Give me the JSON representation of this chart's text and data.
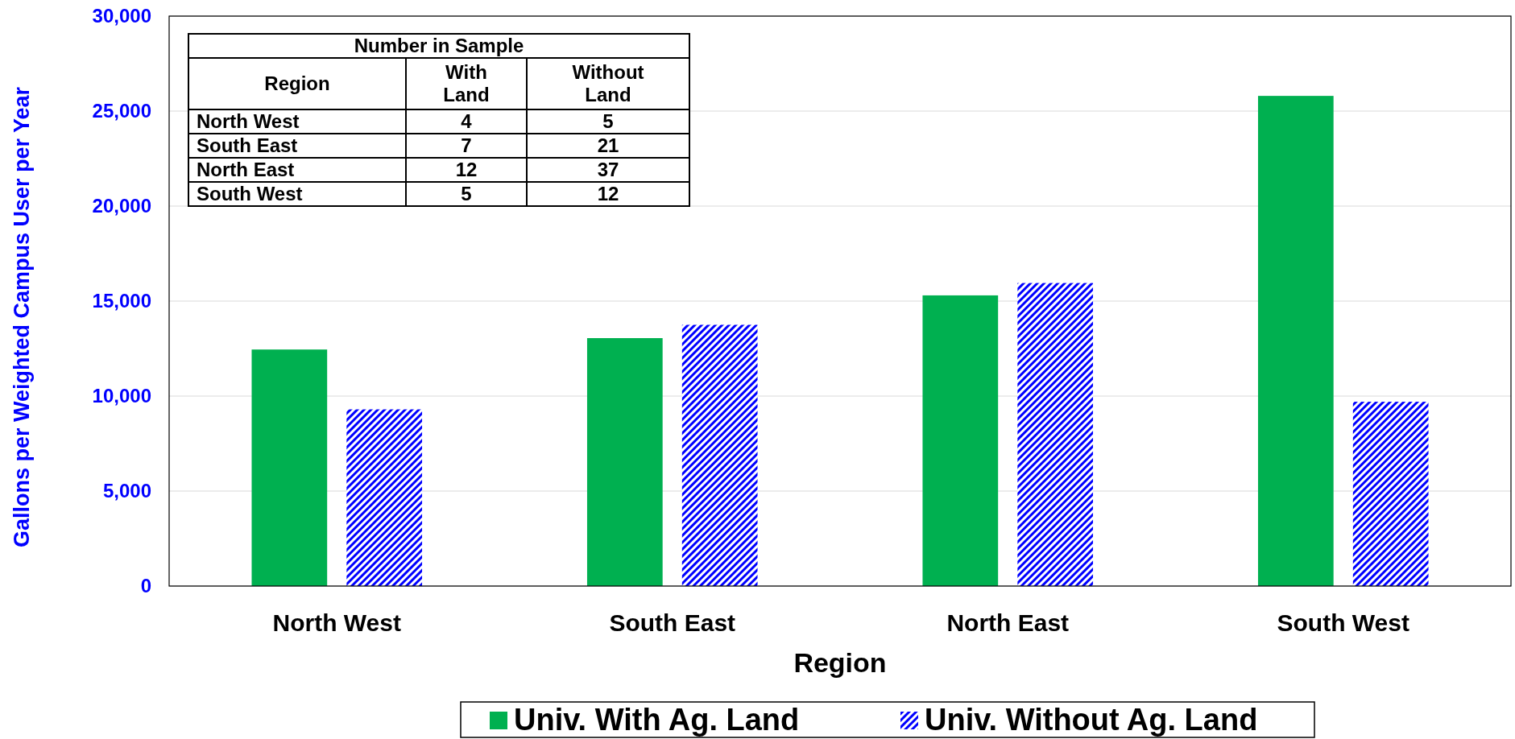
{
  "chart_data": {
    "type": "bar",
    "xlabel": "Region",
    "ylabel": "Gallons per Weighted Campus User per Year",
    "categories": [
      "North West",
      "South East",
      "North East",
      "South West"
    ],
    "series": [
      {
        "name": "Univ. With Ag. Land",
        "color": "#00b050",
        "values": [
          12450,
          13050,
          15300,
          25800
        ]
      },
      {
        "name": "Univ. Without Ag. Land",
        "color": "#0000ff",
        "values": [
          9300,
          13750,
          15950,
          9700
        ]
      }
    ],
    "ylim": [
      0,
      30000
    ],
    "yticks": [
      {
        "value": 0,
        "label": "0"
      },
      {
        "value": 5000,
        "label": "5,000"
      },
      {
        "value": 10000,
        "label": "10,000"
      },
      {
        "value": 15000,
        "label": "15,000"
      },
      {
        "value": 20000,
        "label": "20,000"
      },
      {
        "value": 25000,
        "label": "25,000"
      },
      {
        "value": 30000,
        "label": "30,000"
      }
    ],
    "grid": "y",
    "legend": "bottom",
    "annotations": [
      "Number in Sample",
      "Region",
      "With Land",
      "Without Land",
      "North West",
      "4",
      "5",
      "South East",
      "7",
      "21",
      "North East",
      "12",
      "37",
      "South West",
      "5",
      "12"
    ]
  }
}
